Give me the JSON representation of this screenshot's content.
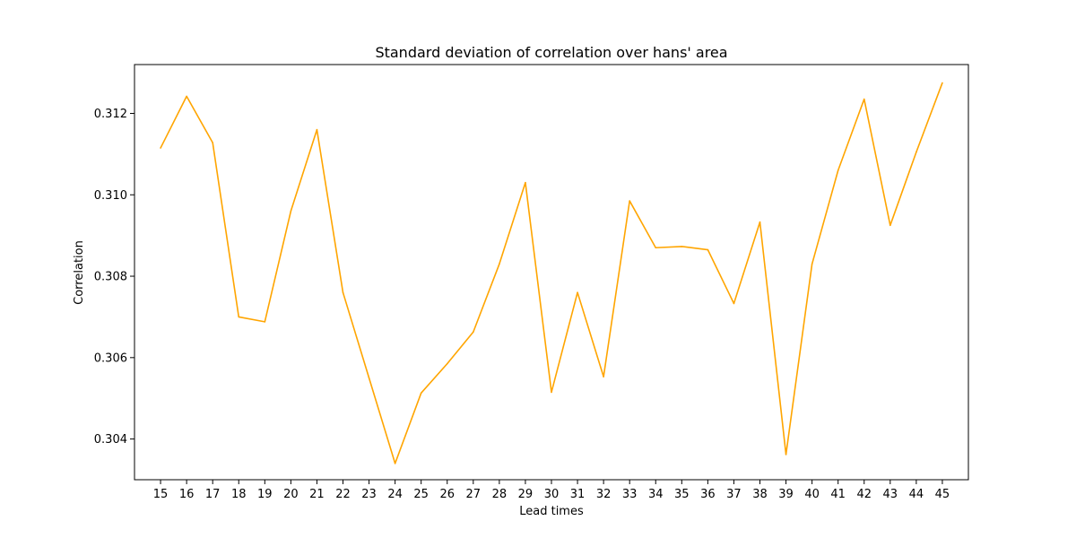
{
  "chart_data": {
    "type": "line",
    "title": "Standard deviation of correlation over hans' area",
    "xlabel": "Lead times",
    "ylabel": "Correlation",
    "x": [
      15,
      16,
      17,
      18,
      19,
      20,
      21,
      22,
      23,
      24,
      25,
      26,
      27,
      28,
      29,
      30,
      31,
      32,
      33,
      34,
      35,
      36,
      37,
      38,
      39,
      40,
      41,
      42,
      43,
      44,
      45
    ],
    "series": [
      {
        "color": "#ffa500",
        "values": [
          0.31115,
          0.31242,
          0.31128,
          0.307,
          0.30688,
          0.3096,
          0.3116,
          0.3076,
          0.3055,
          0.3034,
          0.30513,
          0.30585,
          0.30663,
          0.3083,
          0.3103,
          0.30515,
          0.3076,
          0.30553,
          0.30985,
          0.3087,
          0.30873,
          0.30865,
          0.30733,
          0.30933,
          0.30362,
          0.3083,
          0.3106,
          0.31235,
          0.30925,
          0.31105,
          0.31275
        ]
      }
    ],
    "xlim": [
      14,
      46
    ],
    "ylim": [
      0.303,
      0.3132
    ],
    "yticks": [
      0.304,
      0.306,
      0.308,
      0.31,
      0.312
    ],
    "ytick_labels": [
      "0.304",
      "0.306",
      "0.308",
      "0.310",
      "0.312"
    ],
    "grid": false,
    "legend": "none"
  }
}
